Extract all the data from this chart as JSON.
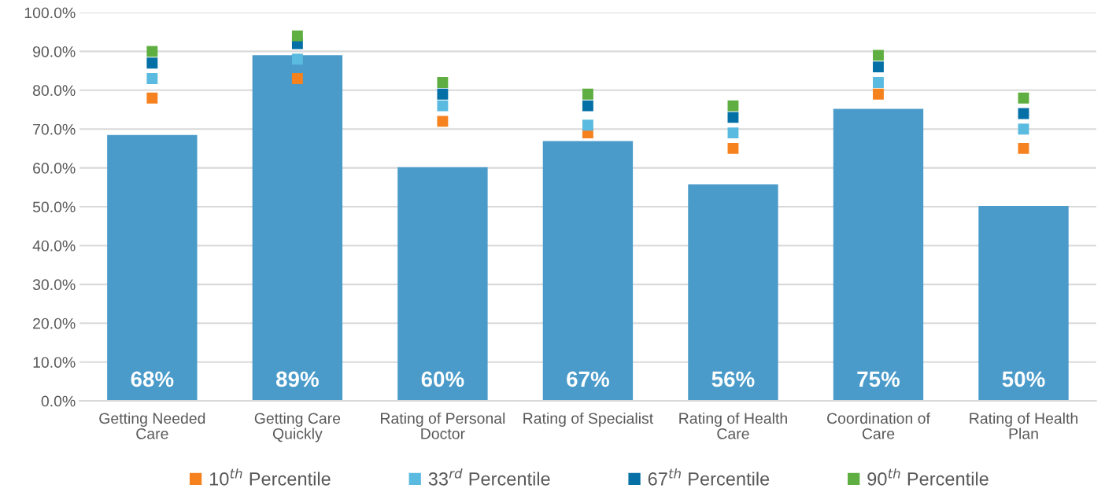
{
  "chart_data": {
    "type": "bar",
    "categories": [
      "Getting Needed Care",
      "Getting Care Quickly",
      "Rating of Personal Doctor",
      "Rating of Specialist",
      "Rating of Health Care",
      "Coordination of Care",
      "Rating of Health Plan"
    ],
    "series": [
      {
        "type": "bar",
        "color": "#4a9bca",
        "values": [
          68.5,
          89,
          60.2,
          66.9,
          55.8,
          75.2,
          50.2
        ],
        "value_labels": [
          "68%",
          "89%",
          "60%",
          "67%",
          "56%",
          "75%",
          "50%"
        ]
      },
      {
        "type": "scatter",
        "name": "10$^{th}$ Percentile",
        "color": "#f6821f",
        "values": [
          78,
          83,
          72,
          69,
          65,
          79,
          65
        ]
      },
      {
        "type": "scatter",
        "name": "33$^{rd}$ Percentile",
        "color": "#5bbadf",
        "values": [
          83,
          88,
          76,
          71,
          69,
          82,
          70
        ]
      },
      {
        "type": "scatter",
        "name": "67$^{th}$ Percentile",
        "color": "#0570a6",
        "values": [
          87,
          92,
          79,
          76,
          73,
          86,
          74
        ]
      },
      {
        "type": "scatter",
        "name": "90$^{th}$ Percentile",
        "color": "#5fae41",
        "values": [
          90,
          94,
          82,
          79,
          76,
          89,
          78
        ]
      }
    ],
    "ylim": [
      0,
      100
    ],
    "yticks": [
      {
        "value": 0,
        "label": "0.0%"
      },
      {
        "value": 10,
        "label": "10.0%"
      },
      {
        "value": 20,
        "label": "20.0%"
      },
      {
        "value": 30,
        "label": "30.0%"
      },
      {
        "value": 40,
        "label": "40.0%"
      },
      {
        "value": 50,
        "label": "50.0%"
      },
      {
        "value": 60,
        "label": "60.0%"
      },
      {
        "value": 70,
        "label": "70.0%"
      },
      {
        "value": 80,
        "label": "80.0%"
      },
      {
        "value": 90,
        "label": "90.0%"
      },
      {
        "value": 100,
        "label": "100.0%"
      }
    ],
    "grid": "y",
    "legend": "bottom",
    "marker": "square"
  }
}
